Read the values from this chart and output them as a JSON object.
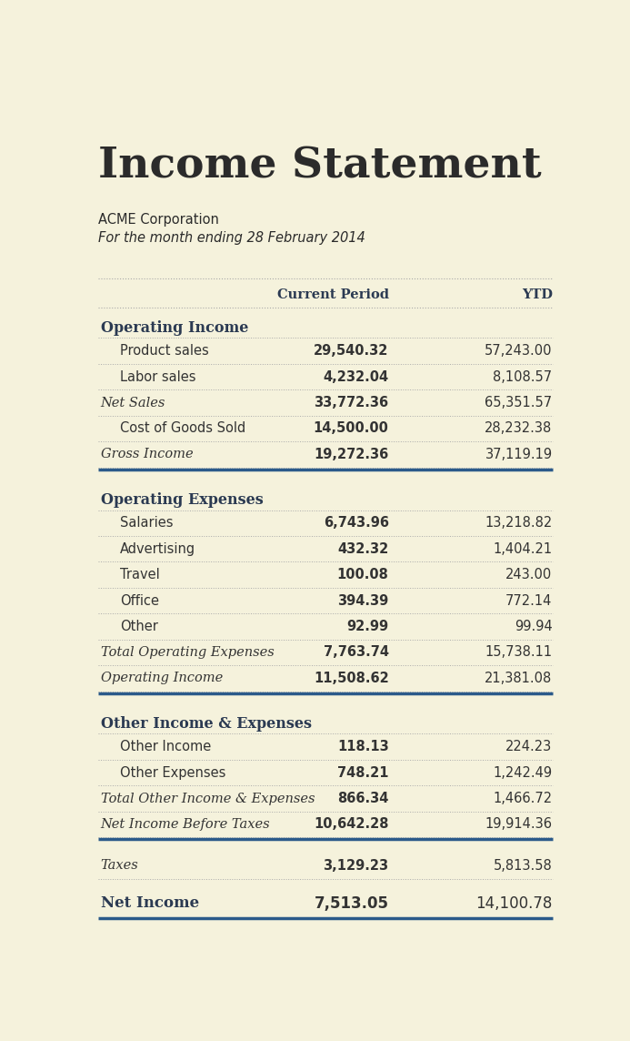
{
  "title": "Income Statement",
  "company": "ACME Corporation",
  "period": "For the month ending 28 February 2014",
  "col_headers": [
    "Current Period",
    "YTD"
  ],
  "bg_color": "#f5f2dc",
  "title_color": "#2b2b2b",
  "header_color": "#2b3a52",
  "text_color": "#333333",
  "blue_line_color": "#2b5a8a",
  "dot_line_color": "#aaaaaa",
  "rows": [
    {
      "label": "Operating Income",
      "cp": "",
      "ytd": "",
      "style": "section_header"
    },
    {
      "label": "Product sales",
      "cp": "29,540.32",
      "ytd": "57,243.00",
      "style": "normal",
      "indent": 1
    },
    {
      "label": "Labor sales",
      "cp": "4,232.04",
      "ytd": "8,108.57",
      "style": "normal",
      "indent": 1
    },
    {
      "label": "Net Sales",
      "cp": "33,772.36",
      "ytd": "65,351.57",
      "style": "italic_bold",
      "indent": 0
    },
    {
      "label": "Cost of Goods Sold",
      "cp": "14,500.00",
      "ytd": "28,232.38",
      "style": "normal",
      "indent": 1
    },
    {
      "label": "Gross Income",
      "cp": "19,272.36",
      "ytd": "37,119.19",
      "style": "italic_bold",
      "indent": 0
    },
    {
      "label": "",
      "cp": "",
      "ytd": "",
      "style": "blue_line"
    },
    {
      "label": "",
      "cp": "",
      "ytd": "",
      "style": "spacer"
    },
    {
      "label": "Operating Expenses",
      "cp": "",
      "ytd": "",
      "style": "section_header"
    },
    {
      "label": "Salaries",
      "cp": "6,743.96",
      "ytd": "13,218.82",
      "style": "normal",
      "indent": 1
    },
    {
      "label": "Advertising",
      "cp": "432.32",
      "ytd": "1,404.21",
      "style": "normal",
      "indent": 1
    },
    {
      "label": "Travel",
      "cp": "100.08",
      "ytd": "243.00",
      "style": "normal",
      "indent": 1
    },
    {
      "label": "Office",
      "cp": "394.39",
      "ytd": "772.14",
      "style": "normal",
      "indent": 1
    },
    {
      "label": "Other",
      "cp": "92.99",
      "ytd": "99.94",
      "style": "normal",
      "indent": 1
    },
    {
      "label": "Total Operating Expenses",
      "cp": "7,763.74",
      "ytd": "15,738.11",
      "style": "italic_bold",
      "indent": 0
    },
    {
      "label": "Operating Income",
      "cp": "11,508.62",
      "ytd": "21,381.08",
      "style": "italic_bold",
      "indent": 0
    },
    {
      "label": "",
      "cp": "",
      "ytd": "",
      "style": "blue_line"
    },
    {
      "label": "",
      "cp": "",
      "ytd": "",
      "style": "spacer"
    },
    {
      "label": "Other Income & Expenses",
      "cp": "",
      "ytd": "",
      "style": "section_header"
    },
    {
      "label": "Other Income",
      "cp": "118.13",
      "ytd": "224.23",
      "style": "normal",
      "indent": 1
    },
    {
      "label": "Other Expenses",
      "cp": "748.21",
      "ytd": "1,242.49",
      "style": "normal",
      "indent": 1
    },
    {
      "label": "Total Other Income & Expenses",
      "cp": "866.34",
      "ytd": "1,466.72",
      "style": "italic_bold",
      "indent": 0
    },
    {
      "label": "Net Income Before Taxes",
      "cp": "10,642.28",
      "ytd": "19,914.36",
      "style": "italic_bold",
      "indent": 0
    },
    {
      "label": "",
      "cp": "",
      "ytd": "",
      "style": "blue_line"
    },
    {
      "label": "",
      "cp": "",
      "ytd": "",
      "style": "spacer"
    },
    {
      "label": "Taxes",
      "cp": "3,129.23",
      "ytd": "5,813.58",
      "style": "italic",
      "indent": 0
    },
    {
      "label": "",
      "cp": "",
      "ytd": "",
      "style": "spacer"
    },
    {
      "label": "Net Income",
      "cp": "7,513.05",
      "ytd": "14,100.78",
      "style": "bold_header",
      "indent": 0
    },
    {
      "label": "",
      "cp": "",
      "ytd": "",
      "style": "blue_line"
    }
  ]
}
